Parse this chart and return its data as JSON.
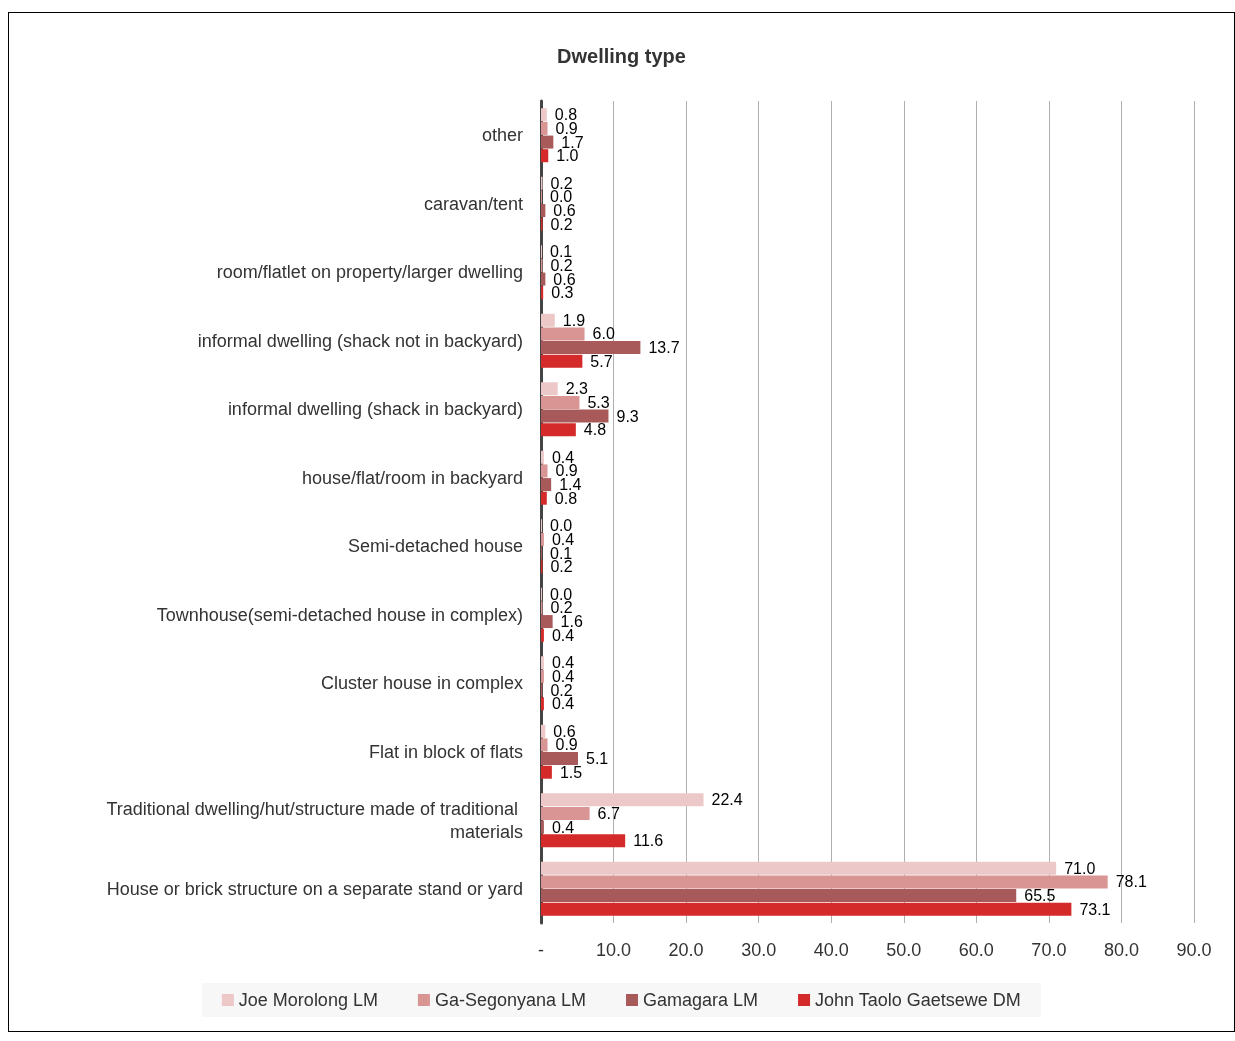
{
  "chart_data": {
    "type": "bar",
    "orientation": "horizontal",
    "title": "Dwelling type",
    "categories": [
      "other",
      "caravan/tent",
      "room/flatlet on property/larger dwelling",
      "informal dwelling (shack not in backyard)",
      "informal dwelling (shack in backyard)",
      "house/flat/room in backyard",
      "Semi-detached house",
      "Townhouse(semi-detached house in complex)",
      "Cluster house in complex",
      "Flat in block of flats",
      "Traditional dwelling/hut/structure made of traditional materials",
      "House or brick structure on a separate stand or yard"
    ],
    "series": [
      {
        "name": "Joe Morolong LM",
        "color": "#ecc8c8",
        "values": [
          0.8,
          0.2,
          0.1,
          1.9,
          2.3,
          0.4,
          0.0,
          0.0,
          0.4,
          0.6,
          22.4,
          71.0
        ],
        "value_labels": [
          "0.8",
          "0.2",
          "0.1",
          "1.9",
          "2.3",
          "0.4",
          "0.0",
          "0.0",
          "0.4",
          "0.6",
          "22.4",
          "71.0"
        ]
      },
      {
        "name": "Ga-Segonyana LM",
        "color": "#d99494",
        "values": [
          0.9,
          0.0,
          0.2,
          6.0,
          5.3,
          0.9,
          0.4,
          0.2,
          0.4,
          0.9,
          6.7,
          78.1
        ],
        "value_labels": [
          "0.9",
          "0.0",
          "0.2",
          "6.0",
          "5.3",
          "0.9",
          "0.4",
          "0.2",
          "0.4",
          "0.9",
          "6.7",
          "78.1"
        ]
      },
      {
        "name": "Gamagara LM",
        "color": "#a85a5a",
        "values": [
          1.7,
          0.6,
          0.6,
          13.7,
          9.3,
          1.4,
          0.1,
          1.6,
          0.2,
          5.1,
          0.4,
          65.5
        ],
        "value_labels": [
          "1.7",
          "0.6",
          "0.6",
          "13.7",
          "9.3",
          "1.4",
          "0.1",
          "1.6",
          "0.2",
          "5.1",
          "0.4",
          "65.5"
        ]
      },
      {
        "name": "John Taolo Gaetsewe DM",
        "color": "#d42a2a",
        "values": [
          1.0,
          0.2,
          0.3,
          5.7,
          4.8,
          0.8,
          0.2,
          0.4,
          0.4,
          1.5,
          11.6,
          73.1
        ],
        "value_labels": [
          "1.0",
          "0.2",
          "0.3",
          "5.7",
          "4.8",
          "0.8",
          "0.2",
          "0.4",
          "0.4",
          "1.5",
          "11.6",
          "73.1"
        ]
      }
    ],
    "xlim": [
      0,
      90
    ],
    "xticks": [
      {
        "value": 0,
        "label": "-"
      },
      {
        "value": 10,
        "label": "10.0"
      },
      {
        "value": 20,
        "label": "20.0"
      },
      {
        "value": 30,
        "label": "30.0"
      },
      {
        "value": 40,
        "label": "40.0"
      },
      {
        "value": 50,
        "label": "50.0"
      },
      {
        "value": 60,
        "label": "60.0"
      },
      {
        "value": 70,
        "label": "70.0"
      },
      {
        "value": 80,
        "label": "80.0"
      },
      {
        "value": 90,
        "label": "90.0"
      }
    ],
    "grid": "x",
    "legend": "bottom"
  }
}
